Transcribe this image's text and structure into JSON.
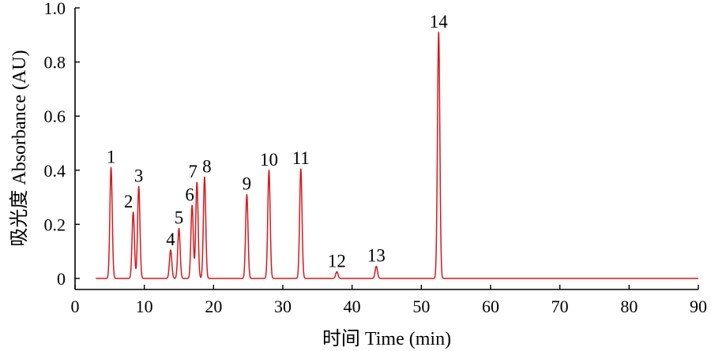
{
  "chart_data": {
    "type": "line",
    "title": "",
    "xlabel": "时间 Time (min)",
    "ylabel": "吸光度 Absorbance (AU)",
    "xlim": [
      0,
      90
    ],
    "ylim": [
      -0.04,
      1.0
    ],
    "xticks": [
      0,
      10,
      20,
      30,
      40,
      50,
      60,
      70,
      80,
      90
    ],
    "yticks": [
      0,
      0.2,
      0.4,
      0.6,
      0.8,
      1.0
    ],
    "ytick_labels": [
      "0",
      "0.2",
      "0.4",
      "0.6",
      "0.8",
      "1.0"
    ],
    "grid": false,
    "line_color": "#d7191c",
    "baseline_start": 3.0,
    "peaks": [
      {
        "label": "1",
        "rt": 5.2,
        "height": 0.41
      },
      {
        "label": "2",
        "rt": 8.4,
        "height": 0.245
      },
      {
        "label": "3",
        "rt": 9.2,
        "height": 0.34
      },
      {
        "label": "4",
        "rt": 13.8,
        "height": 0.105
      },
      {
        "label": "5",
        "rt": 15.0,
        "height": 0.185
      },
      {
        "label": "6",
        "rt": 16.9,
        "height": 0.27
      },
      {
        "label": "7",
        "rt": 17.6,
        "height": 0.355
      },
      {
        "label": "8",
        "rt": 18.7,
        "height": 0.375
      },
      {
        "label": "9",
        "rt": 24.8,
        "height": 0.31
      },
      {
        "label": "10",
        "rt": 28.0,
        "height": 0.4
      },
      {
        "label": "11",
        "rt": 32.6,
        "height": 0.405
      },
      {
        "label": "12",
        "rt": 37.8,
        "height": 0.025
      },
      {
        "label": "13",
        "rt": 43.5,
        "height": 0.045
      },
      {
        "label": "14",
        "rt": 52.5,
        "height": 0.91
      }
    ]
  }
}
